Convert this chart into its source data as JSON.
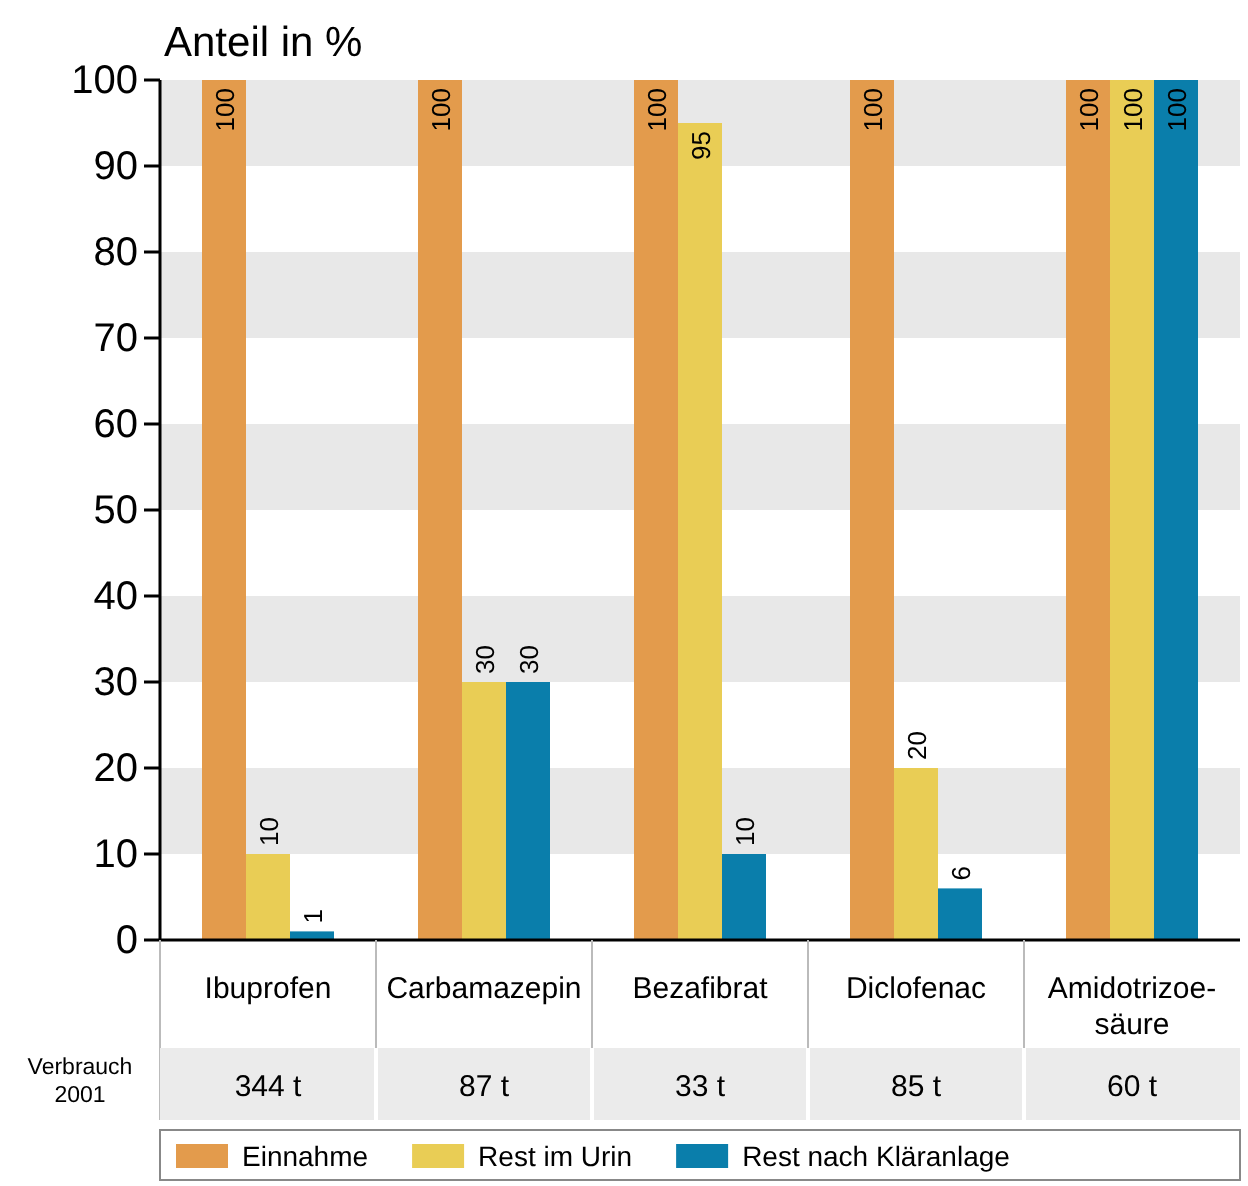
{
  "chart_data": {
    "type": "bar",
    "title": "Anteil in %",
    "categories": [
      "Ibuprofen",
      "Carbamazepin",
      "Bezafibrat",
      "Diclofenac",
      "Amidotrizoe-\nsäure"
    ],
    "series": [
      {
        "name": "Einnahme",
        "color": "#e39b4c",
        "values": [
          100,
          100,
          100,
          100,
          100
        ]
      },
      {
        "name": "Rest im Urin",
        "color": "#e9cd55",
        "values": [
          10,
          30,
          95,
          20,
          100
        ]
      },
      {
        "name": "Rest nach Kläranlage",
        "color": "#0a7eab",
        "values": [
          1,
          30,
          10,
          6,
          100
        ]
      }
    ],
    "ylim": [
      0,
      100
    ],
    "yticks": [
      0,
      10,
      20,
      30,
      40,
      50,
      60,
      70,
      80,
      90,
      100
    ],
    "data_labels": true,
    "legend": "bottom",
    "annotations": [
      "Verbrauch\n2001",
      "344 t",
      "87 t",
      "33 t",
      "85 t",
      "60 t"
    ]
  }
}
